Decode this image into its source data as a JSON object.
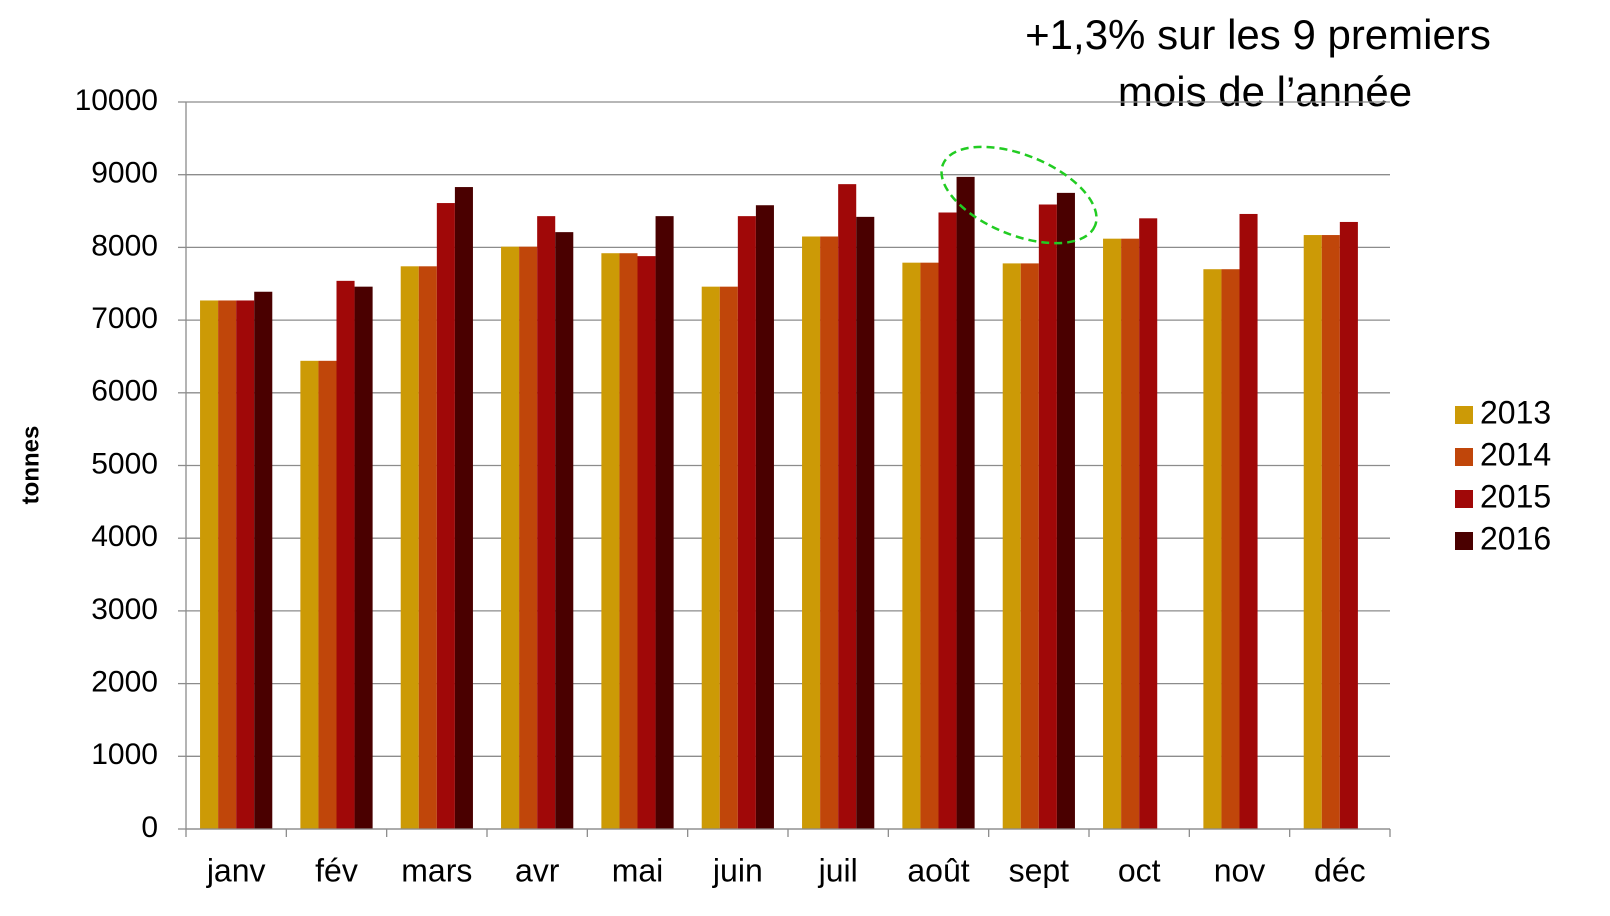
{
  "chart_data": {
    "type": "bar",
    "annotation": [
      "+1,3% sur les 9 premiers",
      "mois de l’année"
    ],
    "y_label": "tonnes",
    "categories": [
      "janv",
      "fév",
      "mars",
      "avr",
      "mai",
      "juin",
      "juil",
      "août",
      "sept",
      "oct",
      "nov",
      "déc"
    ],
    "series": [
      {
        "name": "2013",
        "color": "#cc9a06",
        "values": [
          7270,
          6440,
          7740,
          8010,
          7920,
          7460,
          8150,
          7790,
          7780,
          8120,
          7700,
          8170
        ]
      },
      {
        "name": "2014",
        "color": "#c0460a",
        "values": [
          7270,
          6440,
          7740,
          8010,
          7920,
          7460,
          8150,
          7790,
          7780,
          8120,
          7700,
          8170
        ]
      },
      {
        "name": "2015",
        "color": "#a00808",
        "values": [
          7270,
          7540,
          8610,
          8430,
          7880,
          8430,
          8870,
          8480,
          8590,
          8400,
          8460,
          8350
        ]
      },
      {
        "name": "2016",
        "color": "#4a0000",
        "values": [
          7390,
          7460,
          8830,
          8210,
          8430,
          8580,
          8420,
          8970,
          8750,
          null,
          null,
          null
        ]
      }
    ],
    "ylim": [
      0,
      10000
    ],
    "yticks": [
      0,
      1000,
      2000,
      3000,
      4000,
      5000,
      6000,
      7000,
      8000,
      9000,
      10000
    ],
    "grid": true,
    "legend": "right"
  }
}
